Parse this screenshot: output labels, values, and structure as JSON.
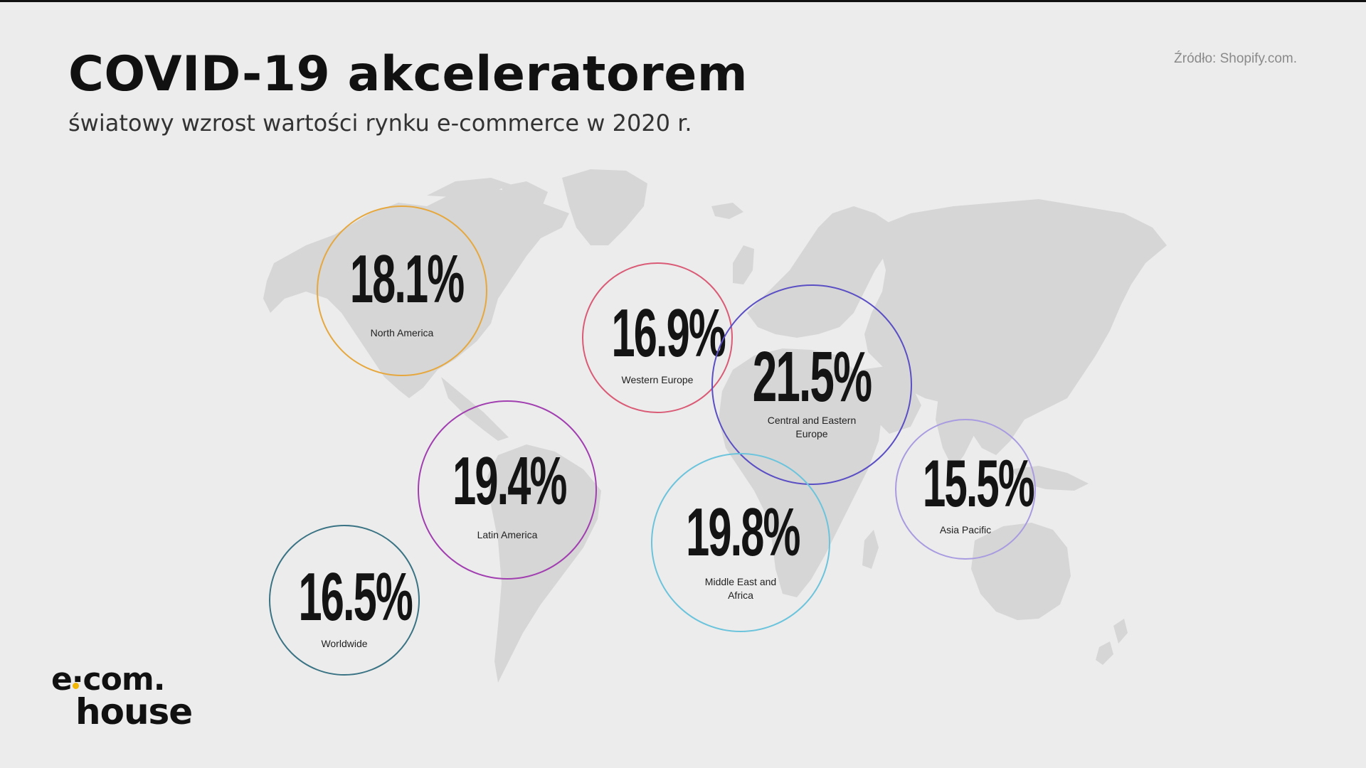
{
  "header": {
    "title": "COVID-19 akceleratorem",
    "subtitle": "światowy wzrost wartości rynku e-commerce w 2020 r.",
    "source": "Źródło: Shopify.com."
  },
  "regions": [
    {
      "id": "north-america",
      "value": "18.1%",
      "name": "North America",
      "color": "#e6a83e"
    },
    {
      "id": "western-europe",
      "value": "16.9%",
      "name": "Western Europe",
      "color": "#d95b76"
    },
    {
      "id": "central-eastern-europe",
      "value": "21.5%",
      "name": "Central and Eastern Europe",
      "color": "#5b4fc4"
    },
    {
      "id": "latin-america",
      "value": "19.4%",
      "name": "Latin America",
      "color": "#a13fb0"
    },
    {
      "id": "middle-east-africa",
      "value": "19.8%",
      "name": "Middle East and Africa",
      "color": "#6cc4dc"
    },
    {
      "id": "asia-pacific",
      "value": "15.5%",
      "name": "Asia Pacific",
      "color": "#a99be0"
    },
    {
      "id": "worldwide",
      "value": "16.5%",
      "name": "Worldwide",
      "color": "#3a7384"
    }
  ],
  "logo": {
    "line1": "e·com.",
    "line2": "house",
    "accent": "#f2b705"
  }
}
